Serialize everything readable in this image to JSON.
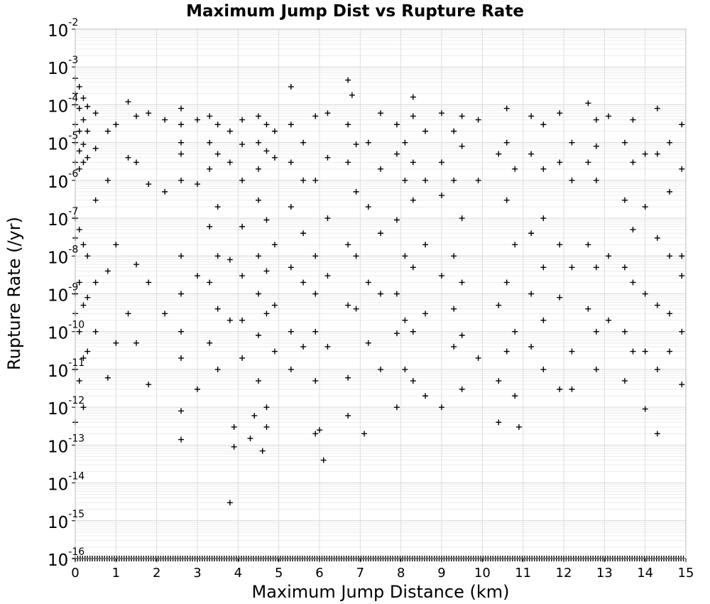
{
  "chart_data": {
    "type": "scatter",
    "title": "Maximum Jump Dist vs Rupture Rate",
    "xlabel": "Maximum Jump Distance (km)",
    "ylabel": "Rupture Rate (/yr)",
    "xlim": [
      0,
      15
    ],
    "ylim": [
      1e-16,
      0.01
    ],
    "y_scale": "log",
    "grid": true,
    "legend": "none",
    "marker": "+",
    "marker_color": "#000000",
    "x_ticks": [
      "0",
      "1",
      "2",
      "3",
      "4",
      "5",
      "6",
      "7",
      "8",
      "9",
      "10",
      "11",
      "12",
      "13",
      "14",
      "15"
    ],
    "y_ticks": [
      {
        "base": "10",
        "exp": "-2"
      },
      {
        "base": "10",
        "exp": "-3"
      },
      {
        "base": "10",
        "exp": "-4"
      },
      {
        "base": "10",
        "exp": "-5"
      },
      {
        "base": "10",
        "exp": "-6"
      },
      {
        "base": "10",
        "exp": "-7"
      },
      {
        "base": "10",
        "exp": "-8"
      },
      {
        "base": "10",
        "exp": "-9"
      },
      {
        "base": "10",
        "exp": "-10"
      },
      {
        "base": "10",
        "exp": "-11"
      },
      {
        "base": "10",
        "exp": "-12"
      },
      {
        "base": "10",
        "exp": "-13"
      },
      {
        "base": "10",
        "exp": "-14"
      },
      {
        "base": "10",
        "exp": "-15"
      },
      {
        "base": "10",
        "exp": "-16"
      }
    ],
    "series": [
      {
        "points": [
          [
            0.0,
            0.0005
          ],
          [
            0.0,
            0.0002
          ],
          [
            0.0,
            0.0001
          ],
          [
            0.0,
            3e-05
          ],
          [
            0.0,
            1e-05
          ],
          [
            0.0,
            3e-06
          ],
          [
            0.0,
            1e-07
          ],
          [
            0.0,
            3e-08
          ],
          [
            0.0,
            1e-09
          ],
          [
            0.0,
            3e-10
          ],
          [
            0.0,
            1e-11
          ],
          [
            0.0,
            4e-13
          ],
          [
            0.1,
            0.0003
          ],
          [
            0.1,
            8e-05
          ],
          [
            0.1,
            2e-05
          ],
          [
            0.1,
            6e-06
          ],
          [
            0.1,
            2e-06
          ],
          [
            0.1,
            5e-08
          ],
          [
            0.1,
            2e-09
          ],
          [
            0.1,
            1e-10
          ],
          [
            0.1,
            5e-12
          ],
          [
            0.2,
            0.00015
          ],
          [
            0.2,
            4e-05
          ],
          [
            0.2,
            9e-06
          ],
          [
            0.2,
            3e-06
          ],
          [
            0.2,
            2e-08
          ],
          [
            0.2,
            5e-10
          ],
          [
            0.2,
            2e-11
          ],
          [
            0.2,
            1e-12
          ],
          [
            0.3,
            9e-05
          ],
          [
            0.3,
            2e-05
          ],
          [
            0.3,
            4e-06
          ],
          [
            0.3,
            1e-08
          ],
          [
            0.3,
            8e-10
          ],
          [
            0.3,
            3e-11
          ],
          [
            0.5,
            6e-05
          ],
          [
            0.5,
            7e-06
          ],
          [
            0.5,
            3e-07
          ],
          [
            0.5,
            2e-09
          ],
          [
            0.5,
            1e-10
          ],
          [
            0.8,
            2e-05
          ],
          [
            0.8,
            1e-06
          ],
          [
            0.8,
            4e-09
          ],
          [
            0.8,
            6e-12
          ],
          [
            1.0,
            3e-05
          ],
          [
            1.0,
            2e-08
          ],
          [
            1.0,
            5e-11
          ],
          [
            1.3,
            0.00012
          ],
          [
            1.3,
            4e-06
          ],
          [
            1.3,
            3e-10
          ],
          [
            1.5,
            5e-05
          ],
          [
            1.5,
            3e-06
          ],
          [
            1.5,
            6e-09
          ],
          [
            1.5,
            5e-11
          ],
          [
            1.8,
            6e-05
          ],
          [
            1.8,
            8e-07
          ],
          [
            1.8,
            2e-09
          ],
          [
            1.8,
            4e-12
          ],
          [
            2.2,
            4e-05
          ],
          [
            2.2,
            5e-07
          ],
          [
            2.2,
            3e-10
          ],
          [
            2.6,
            8e-05
          ],
          [
            2.6,
            3e-05
          ],
          [
            2.6,
            1e-05
          ],
          [
            2.6,
            5e-06
          ],
          [
            2.6,
            1e-06
          ],
          [
            2.6,
            1e-08
          ],
          [
            2.6,
            1e-09
          ],
          [
            2.6,
            1e-10
          ],
          [
            2.6,
            2e-11
          ],
          [
            2.6,
            8e-13
          ],
          [
            2.6,
            1.4e-13
          ],
          [
            3.0,
            4e-05
          ],
          [
            3.0,
            8e-07
          ],
          [
            3.0,
            3e-09
          ],
          [
            3.0,
            3e-12
          ],
          [
            3.3,
            5e-05
          ],
          [
            3.3,
            1e-05
          ],
          [
            3.3,
            2e-06
          ],
          [
            3.3,
            6e-08
          ],
          [
            3.3,
            2e-09
          ],
          [
            3.3,
            5e-11
          ],
          [
            3.5,
            3e-05
          ],
          [
            3.5,
            5e-06
          ],
          [
            3.5,
            2e-07
          ],
          [
            3.5,
            1e-08
          ],
          [
            3.5,
            4e-10
          ],
          [
            3.5,
            1e-11
          ],
          [
            3.8,
            2e-05
          ],
          [
            3.8,
            3e-06
          ],
          [
            3.8,
            8e-09
          ],
          [
            3.8,
            2e-10
          ],
          [
            3.8,
            3e-15
          ],
          [
            3.9,
            3e-13
          ],
          [
            3.9,
            9e-14
          ],
          [
            4.1,
            4e-05
          ],
          [
            4.1,
            9e-06
          ],
          [
            4.1,
            1e-06
          ],
          [
            4.1,
            6e-08
          ],
          [
            4.1,
            3e-09
          ],
          [
            4.1,
            2e-10
          ],
          [
            4.1,
            2e-11
          ],
          [
            4.3,
            1.5e-13
          ],
          [
            4.4,
            6e-13
          ],
          [
            4.5,
            5e-05
          ],
          [
            4.5,
            1e-05
          ],
          [
            4.5,
            2e-06
          ],
          [
            4.5,
            3e-07
          ],
          [
            4.5,
            1e-08
          ],
          [
            4.5,
            1e-09
          ],
          [
            4.5,
            8e-11
          ],
          [
            4.5,
            5e-12
          ],
          [
            4.6,
            7e-14
          ],
          [
            4.7,
            3e-05
          ],
          [
            4.7,
            6e-06
          ],
          [
            4.7,
            9e-08
          ],
          [
            4.7,
            4e-09
          ],
          [
            4.7,
            3e-10
          ],
          [
            4.7,
            1e-12
          ],
          [
            4.7,
            3e-13
          ],
          [
            4.9,
            2e-05
          ],
          [
            4.9,
            4e-06
          ],
          [
            4.9,
            2e-08
          ],
          [
            4.9,
            5e-10
          ],
          [
            4.9,
            3e-11
          ],
          [
            5.3,
            0.0003
          ],
          [
            5.3,
            3e-05
          ],
          [
            5.3,
            3e-06
          ],
          [
            5.3,
            2e-07
          ],
          [
            5.3,
            5e-09
          ],
          [
            5.3,
            1e-10
          ],
          [
            5.3,
            1e-11
          ],
          [
            5.6,
            1e-05
          ],
          [
            5.6,
            1e-06
          ],
          [
            5.6,
            4e-08
          ],
          [
            5.6,
            2e-09
          ],
          [
            5.6,
            4e-11
          ],
          [
            5.9,
            5e-05
          ],
          [
            5.9,
            1e-06
          ],
          [
            5.9,
            1e-08
          ],
          [
            5.9,
            1e-09
          ],
          [
            5.9,
            1e-10
          ],
          [
            5.9,
            5e-12
          ],
          [
            5.9,
            2e-13
          ],
          [
            6.0,
            2.5e-13
          ],
          [
            6.1,
            4e-14
          ],
          [
            6.2,
            6e-05
          ],
          [
            6.2,
            4e-06
          ],
          [
            6.2,
            1e-07
          ],
          [
            6.2,
            3e-09
          ],
          [
            6.2,
            4e-11
          ],
          [
            6.7,
            0.00045
          ],
          [
            6.7,
            3e-05
          ],
          [
            6.7,
            3e-06
          ],
          [
            6.7,
            2e-08
          ],
          [
            6.7,
            5e-10
          ],
          [
            6.7,
            6e-12
          ],
          [
            6.7,
            6e-13
          ],
          [
            6.8,
            0.00018
          ],
          [
            6.9,
            9e-06
          ],
          [
            6.9,
            5e-07
          ],
          [
            6.9,
            1e-08
          ],
          [
            6.9,
            4e-10
          ],
          [
            7.1,
            2e-13
          ],
          [
            7.2,
            1e-05
          ],
          [
            7.2,
            2e-07
          ],
          [
            7.2,
            2e-09
          ],
          [
            7.2,
            5e-11
          ],
          [
            7.5,
            6e-05
          ],
          [
            7.5,
            2e-06
          ],
          [
            7.5,
            4e-08
          ],
          [
            7.5,
            1e-09
          ],
          [
            7.5,
            1e-11
          ],
          [
            7.9,
            3e-05
          ],
          [
            7.9,
            5e-06
          ],
          [
            7.9,
            9e-08
          ],
          [
            7.9,
            1e-09
          ],
          [
            7.9,
            9e-11
          ],
          [
            7.9,
            1e-12
          ],
          [
            8.1,
            1e-05
          ],
          [
            8.1,
            1e-06
          ],
          [
            8.1,
            1e-08
          ],
          [
            8.1,
            2e-10
          ],
          [
            8.1,
            1e-11
          ],
          [
            8.3,
            0.00016
          ],
          [
            8.3,
            5e-05
          ],
          [
            8.3,
            3e-06
          ],
          [
            8.3,
            3e-07
          ],
          [
            8.3,
            5e-09
          ],
          [
            8.3,
            1e-10
          ],
          [
            8.3,
            5e-12
          ],
          [
            8.6,
            2e-05
          ],
          [
            8.6,
            1e-06
          ],
          [
            8.6,
            2e-08
          ],
          [
            8.6,
            3e-10
          ],
          [
            8.6,
            2e-12
          ],
          [
            9.0,
            6e-05
          ],
          [
            9.0,
            3e-06
          ],
          [
            9.0,
            4e-07
          ],
          [
            9.0,
            3e-09
          ],
          [
            9.0,
            1e-12
          ],
          [
            9.3,
            2e-05
          ],
          [
            9.3,
            1e-06
          ],
          [
            9.3,
            1e-08
          ],
          [
            9.3,
            4e-10
          ],
          [
            9.3,
            4e-11
          ],
          [
            9.5,
            5e-05
          ],
          [
            9.5,
            8e-06
          ],
          [
            9.5,
            1e-07
          ],
          [
            9.5,
            2e-09
          ],
          [
            9.5,
            8e-11
          ],
          [
            9.5,
            3e-12
          ],
          [
            9.9,
            4e-05
          ],
          [
            9.9,
            1e-06
          ],
          [
            9.9,
            2e-11
          ],
          [
            10.4,
            5e-06
          ],
          [
            10.4,
            5e-10
          ],
          [
            10.4,
            5e-12
          ],
          [
            10.4,
            4e-13
          ],
          [
            10.6,
            8e-05
          ],
          [
            10.6,
            1e-05
          ],
          [
            10.6,
            3e-07
          ],
          [
            10.6,
            2e-09
          ],
          [
            10.6,
            3e-11
          ],
          [
            10.8,
            2e-06
          ],
          [
            10.8,
            2e-08
          ],
          [
            10.8,
            1e-10
          ],
          [
            10.8,
            2e-12
          ],
          [
            10.9,
            3e-13
          ],
          [
            11.2,
            5e-05
          ],
          [
            11.2,
            5e-06
          ],
          [
            11.2,
            4e-08
          ],
          [
            11.2,
            1e-09
          ],
          [
            11.2,
            4e-11
          ],
          [
            11.5,
            3e-05
          ],
          [
            11.5,
            2e-06
          ],
          [
            11.5,
            1e-07
          ],
          [
            11.5,
            5e-09
          ],
          [
            11.5,
            2e-10
          ],
          [
            11.5,
            1e-11
          ],
          [
            11.9,
            6e-05
          ],
          [
            11.9,
            3e-06
          ],
          [
            11.9,
            2e-08
          ],
          [
            11.9,
            8e-10
          ],
          [
            11.9,
            3e-12
          ],
          [
            12.2,
            1e-05
          ],
          [
            12.2,
            1e-06
          ],
          [
            12.2,
            5e-09
          ],
          [
            12.2,
            3e-11
          ],
          [
            12.2,
            3e-12
          ],
          [
            12.6,
            0.00011
          ],
          [
            12.6,
            3e-06
          ],
          [
            12.6,
            2e-08
          ],
          [
            12.6,
            4e-10
          ],
          [
            12.8,
            4e-05
          ],
          [
            12.8,
            8e-06
          ],
          [
            12.8,
            1e-06
          ],
          [
            12.8,
            5e-09
          ],
          [
            12.8,
            1e-10
          ],
          [
            12.8,
            1e-11
          ],
          [
            13.1,
            5e-05
          ],
          [
            13.1,
            1e-08
          ],
          [
            13.1,
            2e-10
          ],
          [
            13.5,
            1e-05
          ],
          [
            13.5,
            3e-07
          ],
          [
            13.5,
            5e-09
          ],
          [
            13.5,
            1e-10
          ],
          [
            13.5,
            5e-12
          ],
          [
            13.7,
            4e-05
          ],
          [
            13.7,
            3e-06
          ],
          [
            13.7,
            5e-08
          ],
          [
            13.7,
            2e-09
          ],
          [
            13.7,
            3e-11
          ],
          [
            14.0,
            5e-06
          ],
          [
            14.0,
            2e-07
          ],
          [
            14.0,
            1e-09
          ],
          [
            14.0,
            3e-11
          ],
          [
            14.0,
            9e-13
          ],
          [
            14.3,
            8e-05
          ],
          [
            14.3,
            5e-06
          ],
          [
            14.3,
            3e-08
          ],
          [
            14.3,
            5e-10
          ],
          [
            14.3,
            1e-11
          ],
          [
            14.3,
            2e-13
          ],
          [
            14.6,
            1e-05
          ],
          [
            14.6,
            5e-07
          ],
          [
            14.6,
            1e-08
          ],
          [
            14.6,
            3e-10
          ],
          [
            14.6,
            3e-11
          ],
          [
            14.9,
            3e-05
          ],
          [
            14.9,
            2e-06
          ],
          [
            14.9,
            1e-08
          ],
          [
            14.9,
            3e-09
          ],
          [
            14.9,
            1e-10
          ],
          [
            14.9,
            4e-12
          ]
        ]
      }
    ]
  }
}
